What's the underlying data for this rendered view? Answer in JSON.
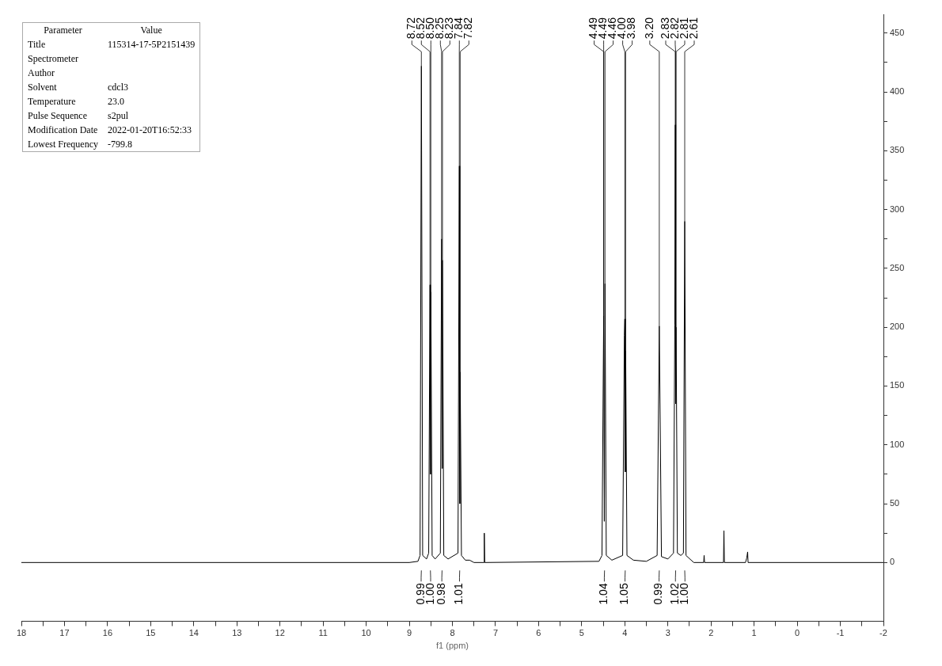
{
  "chart_data": {
    "type": "line",
    "xlabel": "f1 (ppm)",
    "x": [
      18,
      9.0,
      8.8,
      8.75,
      8.72,
      8.69,
      8.6,
      8.55,
      8.52,
      8.51,
      8.5,
      8.47,
      8.4,
      8.28,
      8.25,
      8.24,
      8.23,
      8.2,
      8.1,
      7.87,
      7.84,
      7.83,
      7.82,
      7.79,
      7.7,
      7.6,
      7.5,
      7.27,
      7.26,
      7.25,
      4.6,
      4.53,
      4.49,
      4.475,
      4.46,
      4.43,
      4.3,
      4.05,
      4.01,
      4.0,
      3.99,
      3.98,
      3.95,
      3.8,
      3.5,
      3.25,
      3.2,
      3.15,
      3.0,
      2.87,
      2.84,
      2.83,
      2.82,
      2.81,
      2.78,
      2.7,
      2.64,
      2.61,
      2.58,
      2.4,
      2.17,
      2.16,
      2.15,
      1.71,
      1.7,
      1.69,
      1.2,
      1.17,
      1.15,
      1.14,
      -2
    ],
    "series": [
      {
        "color": "#000000",
        "values": [
          0,
          0,
          1,
          6,
          422,
          6,
          3,
          8,
          236,
          75,
          230,
          6,
          3,
          8,
          275,
          80,
          257,
          6,
          3,
          8,
          337,
          50,
          162,
          6,
          2,
          2,
          0,
          0,
          25,
          0,
          1,
          6,
          210,
          35,
          237,
          6,
          2,
          6,
          193,
          207,
          77,
          180,
          6,
          2,
          1,
          6,
          201,
          5,
          3,
          8,
          202,
          372,
          135,
          200,
          8,
          6,
          8,
          290,
          6,
          0,
          0,
          6,
          0,
          0,
          27,
          0,
          0,
          4,
          9,
          0,
          0
        ]
      }
    ],
    "xlim": [
      18,
      -2
    ],
    "xticks": [
      18,
      {
        "value": 17.5,
        "label": null
      },
      17,
      {
        "value": 16.5,
        "label": null
      },
      16,
      {
        "value": 15.5,
        "label": null
      },
      15,
      {
        "value": 14.5,
        "label": null
      },
      14,
      {
        "value": 13.5,
        "label": null
      },
      13,
      {
        "value": 12.5,
        "label": null
      },
      12,
      {
        "value": 11.5,
        "label": null
      },
      11,
      {
        "value": 10.5,
        "label": null
      },
      10,
      {
        "value": 9.5,
        "label": null
      },
      9,
      {
        "value": 8.5,
        "label": null
      },
      8,
      {
        "value": 7.5,
        "label": null
      },
      7,
      {
        "value": 6.5,
        "label": null
      },
      6,
      {
        "value": 5.5,
        "label": null
      },
      5,
      {
        "value": 4.5,
        "label": null
      },
      4,
      {
        "value": 3.5,
        "label": null
      },
      3,
      {
        "value": 2.5,
        "label": null
      },
      2,
      {
        "value": 1.5,
        "label": null
      },
      1,
      {
        "value": 0.5,
        "label": null
      },
      0,
      {
        "value": -0.5,
        "label": null
      },
      -1,
      {
        "value": -1.5,
        "label": null
      },
      -2
    ],
    "ylim": [
      -50,
      466
    ],
    "yticks": [
      0,
      {
        "value": 25,
        "label": null
      },
      50,
      {
        "value": 75,
        "label": null
      },
      100,
      {
        "value": 125,
        "label": null
      },
      150,
      {
        "value": 175,
        "label": null
      },
      200,
      {
        "value": 225,
        "label": null
      },
      250,
      {
        "value": 275,
        "label": null
      },
      300,
      {
        "value": 325,
        "label": null
      },
      350,
      {
        "value": 375,
        "label": null
      },
      400,
      {
        "value": 425,
        "label": null
      },
      450
    ],
    "grid": false,
    "legend": false,
    "marker": "none",
    "line_style": "solid",
    "annotations": [
      "Parameter",
      "Value",
      "Title",
      "115314-17-5P2151439",
      "Spectrometer",
      null,
      "Author",
      null,
      "Solvent",
      "cdcl3",
      "Temperature",
      "23.0",
      "Pulse Sequence",
      "s2pul",
      "Modification Date",
      "2022-01-20T16:52:33",
      "Lowest Frequency",
      "-799.8",
      {
        "text": "8.72",
        "x": 8.72,
        "y": 422
      },
      {
        "text": "8.52",
        "x": 8.52,
        "y": 236
      },
      {
        "text": "8.50",
        "x": 8.5,
        "y": 230
      },
      {
        "text": "8.25",
        "x": 8.25,
        "y": 275
      },
      {
        "text": "8.23",
        "x": 8.23,
        "y": 257
      },
      {
        "text": "7.84",
        "x": 7.84,
        "y": 337
      },
      {
        "text": "7.82",
        "x": 7.82,
        "y": 162
      },
      {
        "text": "4.49",
        "x": 4.49,
        "y": 210
      },
      {
        "text": "4.49",
        "x": 4.49,
        "y": 210
      },
      {
        "text": "4.46",
        "x": 4.46,
        "y": 237
      },
      {
        "text": "4.00",
        "x": 4.0,
        "y": 207
      },
      {
        "text": "3.98",
        "x": 3.98,
        "y": 180
      },
      {
        "text": "3.20",
        "x": 3.2,
        "y": 201
      },
      {
        "text": "2.83",
        "x": 2.83,
        "y": 372
      },
      {
        "text": "2.82",
        "x": 2.82,
        "y": 135
      },
      {
        "text": "2.81",
        "x": 2.81,
        "y": 200
      },
      {
        "text": "2.61",
        "x": 2.61,
        "y": 290
      },
      {
        "text": "0.99",
        "x": 8.72
      },
      {
        "text": "1.00",
        "x": 8.51
      },
      {
        "text": "0.98",
        "x": 8.24
      },
      {
        "text": "1.01",
        "x": 7.83
      },
      {
        "text": "1.04",
        "x": 4.47
      },
      {
        "text": "1.05",
        "x": 3.99
      },
      {
        "text": "0.99",
        "x": 3.2
      },
      {
        "text": "1.02",
        "x": 2.82
      },
      {
        "text": "1.00",
        "x": 2.61
      }
    ]
  }
}
